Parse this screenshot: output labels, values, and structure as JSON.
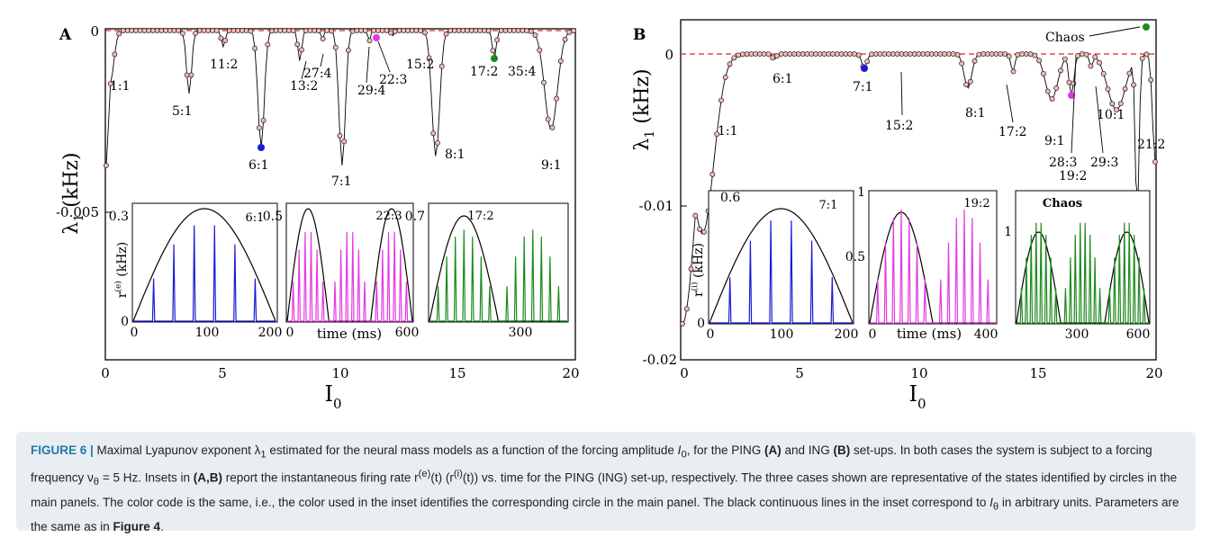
{
  "panels": [
    {
      "label": "A",
      "ylabel": "λ",
      "ylabel_sub": "1",
      "ylabel_unit": "(kHz)",
      "xlabel": "I",
      "xlabel_sub": "0",
      "x_ticks": [
        "0",
        "5",
        "10",
        "15",
        "20"
      ],
      "y_ticks": [
        "0",
        "-0.005"
      ],
      "annotations": [
        "1:1",
        "5:1",
        "11:2",
        "6:1",
        "13:2",
        "27:4",
        "7:1",
        "29:4",
        "22:3",
        "15:2",
        "8:1",
        "17:2",
        "35:4",
        "9:1"
      ],
      "insets": [
        {
          "label": "6:1",
          "y_top": "0.3",
          "y_bottom": "0",
          "x_ticks": [
            "0",
            "100",
            "200"
          ],
          "ylabel": "r",
          "ylabel_sup": "(e)",
          "ylabel_unit": "(kHz)",
          "color": "#1a1ad6"
        },
        {
          "label": "22:3",
          "y_top": "0.5",
          "x_ticks": [
            "0",
            "600"
          ],
          "xlabel": "time (ms)",
          "color": "#e23ae2"
        },
        {
          "label": "17:2",
          "y_top": "0.7",
          "x_ticks": [
            "300"
          ],
          "color": "#1e8a1e"
        }
      ]
    },
    {
      "label": "B",
      "ylabel": "λ",
      "ylabel_sub": "1",
      "ylabel_unit": "(kHz)",
      "xlabel": "I",
      "xlabel_sub": "0",
      "x_ticks": [
        "0",
        "5",
        "10",
        "15",
        "20"
      ],
      "y_ticks": [
        "0",
        "-0.01",
        "-0.02"
      ],
      "annotations": [
        "Chaos",
        "6:1",
        "7:1",
        "1:1",
        "15:2",
        "8:1",
        "17:2",
        "9:1",
        "28:3",
        "19:2",
        "29:3",
        "10:1",
        "21:2"
      ],
      "insets": [
        {
          "label": "7:1",
          "y_top": "0.6",
          "y_bottom": "0",
          "x_ticks": [
            "0",
            "100",
            "200"
          ],
          "ylabel": "r",
          "ylabel_sup": "(i)",
          "ylabel_unit": "(kHz)",
          "color": "#1a1ad6"
        },
        {
          "label": "19:2",
          "y_top": "1",
          "y_mid": "0.5",
          "x_ticks": [
            "0",
            "400"
          ],
          "xlabel": "time (ms)",
          "color": "#e23ae2"
        },
        {
          "label": "Chaos",
          "y_top": "1",
          "x_ticks": [
            "300",
            "600"
          ],
          "color": "#1e8a1e"
        }
      ]
    }
  ],
  "colors": {
    "zero_line": "#e02020",
    "marker_fill": "#f3b7b7",
    "highlight_blue": "#1a1ad6",
    "highlight_magenta": "#e23ae2",
    "highlight_green": "#1e8a1e",
    "caption_bg": "#e9eef3",
    "caption_label": "#1f7aa8"
  },
  "caption": {
    "label": "FIGURE 6 |",
    "text_1": " Maximal Lyapunov exponent λ",
    "text_1_sub": "1",
    "text_2": " estimated for the neural mass models as a function of the forcing amplitude ",
    "text_I": "I",
    "text_I_sub": "0",
    "text_3": ", for the PING ",
    "text_A": "(A)",
    "text_4": " and ING ",
    "text_B": "(B)",
    "text_5": " set-ups. In both cases the system is subject to a forcing frequency ν",
    "text_5_sub": "θ",
    "text_6": " = 5 Hz. Insets in ",
    "text_AB": "(A,B)",
    "text_7": " report the instantaneous firing rate r",
    "text_7_sup": "(e)",
    "text_8": "(t) (r",
    "text_8_sup": "(i)",
    "text_9": "(t)) vs. time for the PING (ING) set-up, respectively. The three cases shown are representative of the states identified by circles in the main panels. The color code is the same, i.e., the color used in the inset identifies the corresponding circle in the main panel. The black continuous lines in the inset correspond to ",
    "text_Itheta": "I",
    "text_Itheta_sub": "θ",
    "text_10": " in arbitrary units. Parameters are the same as in ",
    "text_fig4": "Figure 4",
    "text_11": "."
  }
}
